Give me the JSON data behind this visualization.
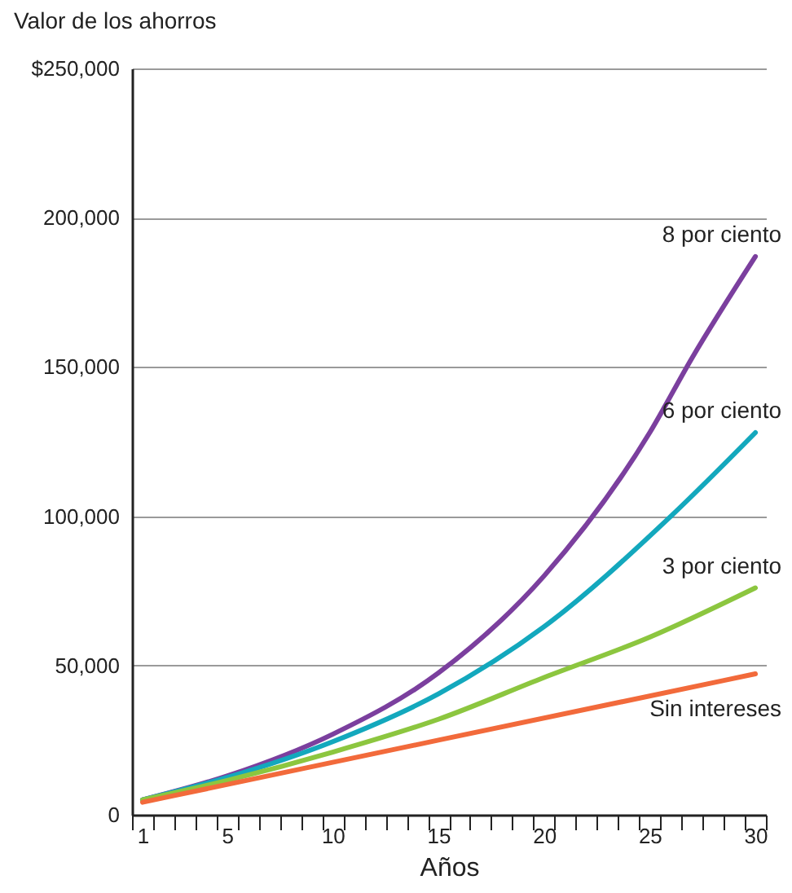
{
  "chart_data": {
    "type": "line",
    "ylabel": "Valor de los ahorros",
    "xlabel": "Años",
    "xlim": [
      0.5,
      30.5
    ],
    "xticks": [
      {
        "value": 0.5,
        "label": null
      },
      1,
      {
        "value": 1.5,
        "label": null
      },
      {
        "value": 2.5,
        "label": null
      },
      {
        "value": 3.5,
        "label": null
      },
      {
        "value": 4.5,
        "label": null
      },
      5,
      {
        "value": 5.5,
        "label": null
      },
      {
        "value": 6.5,
        "label": null
      },
      {
        "value": 7.5,
        "label": null
      },
      {
        "value": 8.5,
        "label": null
      },
      {
        "value": 9.5,
        "label": null
      },
      10,
      {
        "value": 10.5,
        "label": null
      },
      {
        "value": 11.5,
        "label": null
      },
      {
        "value": 12.5,
        "label": null
      },
      {
        "value": 13.5,
        "label": null
      },
      {
        "value": 14.5,
        "label": null
      },
      15,
      {
        "value": 15.5,
        "label": null
      },
      {
        "value": 16.5,
        "label": null
      },
      {
        "value": 17.5,
        "label": null
      },
      {
        "value": 18.5,
        "label": null
      },
      {
        "value": 19.5,
        "label": null
      },
      20,
      {
        "value": 20.5,
        "label": null
      },
      {
        "value": 21.5,
        "label": null
      },
      {
        "value": 22.5,
        "label": null
      },
      {
        "value": 23.5,
        "label": null
      },
      {
        "value": 24.5,
        "label": null
      },
      25,
      {
        "value": 25.5,
        "label": null
      },
      {
        "value": 26.5,
        "label": null
      },
      {
        "value": 27.5,
        "label": null
      },
      {
        "value": 28.5,
        "label": null
      },
      {
        "value": 29.5,
        "label": null
      },
      30,
      {
        "value": 30.5,
        "label": null
      }
    ],
    "ylim": [
      0,
      250000
    ],
    "yticks": [
      0,
      {
        "value": 50000,
        "label": "50,000"
      },
      {
        "value": 100000,
        "label": "100,000"
      },
      {
        "value": 150000,
        "label": "150,000"
      },
      {
        "value": 200000,
        "label": "200,000"
      },
      {
        "value": 250000,
        "label": "$250,000"
      }
    ],
    "grid": "y",
    "legend": false,
    "series": [
      {
        "name": "8 por ciento",
        "color": "#7b3f9e",
        "x": [
          1,
          5,
          10,
          15,
          20,
          25,
          27,
          30
        ],
        "values": [
          5000,
          13000,
          27000,
          47500,
          80000,
          128000,
          153000,
          187000
        ]
      },
      {
        "name": "6  por ciento",
        "color": "#13a8bd",
        "x": [
          1,
          5,
          10,
          15,
          20,
          26,
          30
        ],
        "values": [
          5000,
          12500,
          24500,
          40500,
          63000,
          100000,
          128000
        ]
      },
      {
        "name": "3 por ciento",
        "color": "#8cc63f",
        "x": [
          1,
          5,
          10,
          15,
          20,
          25,
          30
        ],
        "values": [
          5000,
          11500,
          21000,
          32000,
          46000,
          59500,
          76000
        ]
      },
      {
        "name": "Sin intereses",
        "color": "#f26a3b",
        "x": [
          1,
          15,
          30
        ],
        "values": [
          4200,
          25000,
          47200
        ]
      }
    ]
  }
}
